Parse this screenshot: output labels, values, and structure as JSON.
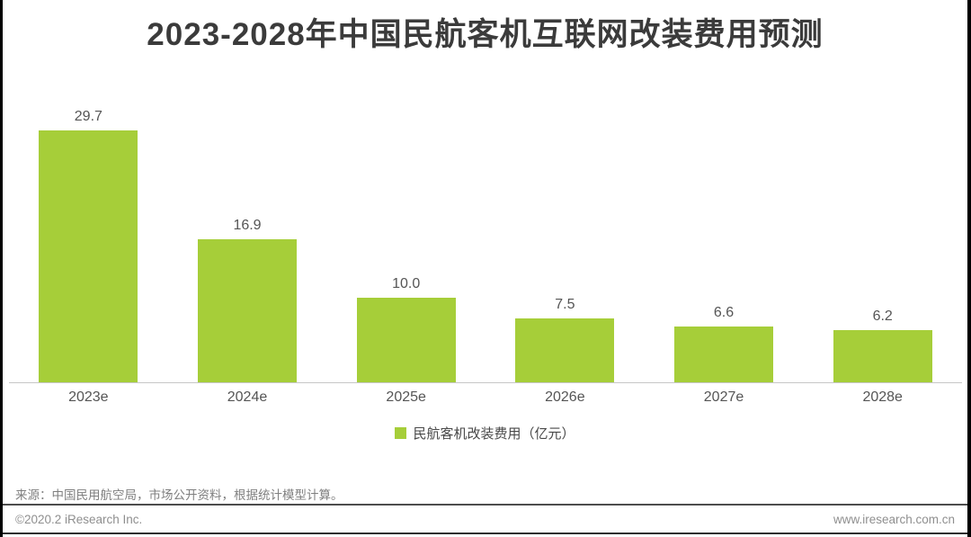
{
  "chart_data": {
    "type": "bar",
    "title": "2023-2028年中国民航客机互联网改装费用预测",
    "categories": [
      "2023e",
      "2024e",
      "2025e",
      "2026e",
      "2027e",
      "2028e"
    ],
    "values": [
      29.7,
      16.9,
      10.0,
      7.5,
      6.6,
      6.2
    ],
    "series_name": "民航客机改装费用（亿元）",
    "unit": "亿元",
    "ylim": [
      0,
      31
    ],
    "grid": false,
    "legend_position": "bottom",
    "bar_color": "#A6CE39",
    "value_label_color": "#555555",
    "title_color": "#3b3b3b"
  },
  "legend": {
    "label": "民航客机改装费用（亿元）",
    "swatch_color": "#A6CE39"
  },
  "footer": {
    "source": "来源：中国民用航空局，市场公开资料，根据统计模型计算。",
    "copyright": "©2020.2 iResearch Inc.",
    "website": "www.iresearch.com.cn"
  }
}
